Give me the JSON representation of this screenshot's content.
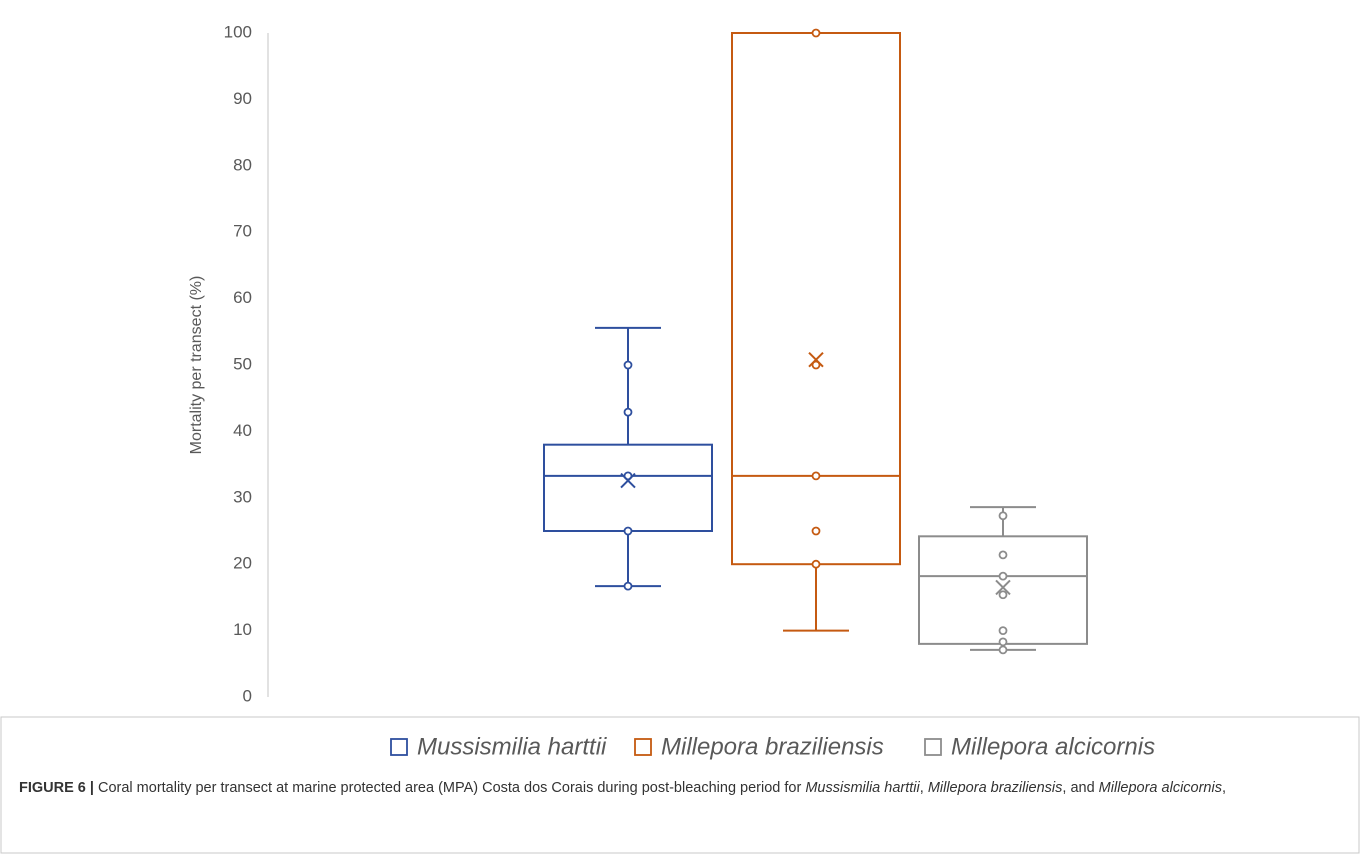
{
  "chart_data": {
    "type": "box",
    "y_label": "Mortality  per transect (%)",
    "ylim": [
      0,
      100
    ],
    "yticks": [
      0,
      10,
      20,
      30,
      40,
      50,
      60,
      70,
      80,
      90,
      100
    ],
    "series": [
      {
        "name": "Mussismilia harttii",
        "color": "#2e4f9e",
        "min": 16.7,
        "q1": 25,
        "median": 33.3,
        "q3": 38,
        "max": 55.6,
        "mean": 32.6,
        "points": [
          50,
          42.9,
          33.3,
          25,
          16.7
        ]
      },
      {
        "name": "Millepora braziliensis",
        "color": "#c55a11",
        "min": 10,
        "q1": 20,
        "median": 33.3,
        "q3": 100,
        "max": 100,
        "mean": 50.8,
        "points": [
          100,
          50,
          33.3,
          25,
          20
        ]
      },
      {
        "name": "Millepora alcicornis",
        "color": "#8c8c8c",
        "min": 7.1,
        "q1": 8,
        "median": 18.2,
        "q3": 24.2,
        "max": 28.6,
        "mean": 16.5,
        "points": [
          27.3,
          21.4,
          18.2,
          15.4,
          10,
          8.3,
          7.1
        ]
      }
    ]
  },
  "caption": {
    "label": "FIGURE 6 |",
    "parts": [
      {
        "text": " Coral mortality per transect at marine protected area (MPA) Costa dos Corais during post-bleaching period for ",
        "italic": false
      },
      {
        "text": "Mussismilia harttii",
        "italic": true
      },
      {
        "text": ", ",
        "italic": false
      },
      {
        "text": "Millepora braziliensis",
        "italic": true
      },
      {
        "text": ", and ",
        "italic": false
      },
      {
        "text": "Millepora alcicornis",
        "italic": true
      },
      {
        "text": ",",
        "italic": false
      }
    ]
  }
}
